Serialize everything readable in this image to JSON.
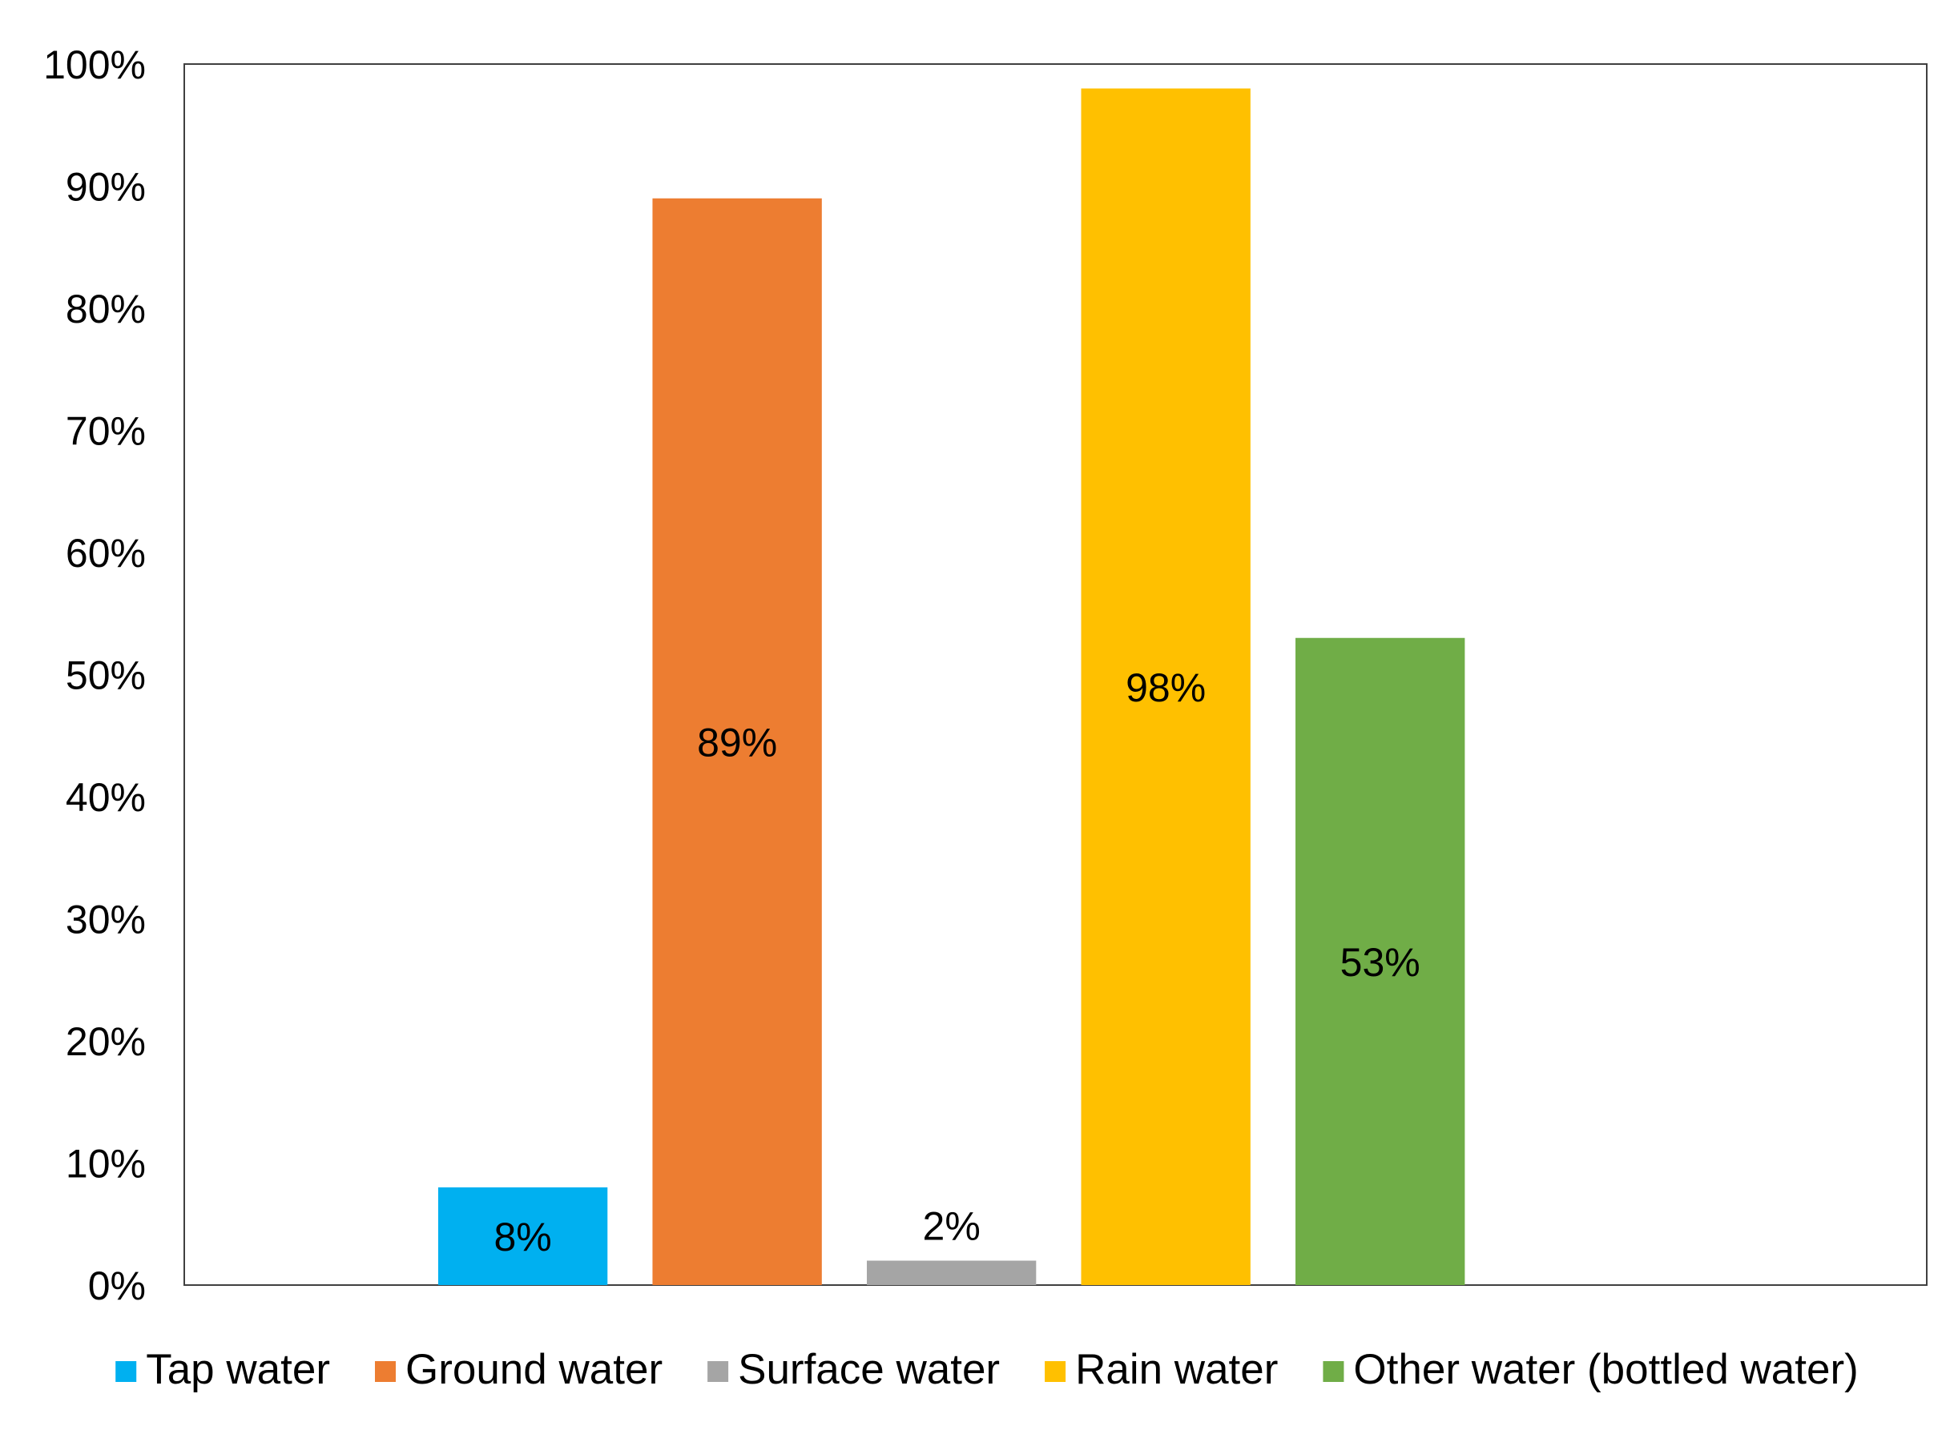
{
  "chart_data": {
    "type": "bar",
    "title": "",
    "xlabel": "",
    "ylabel": "",
    "ylim": [
      0,
      100
    ],
    "yticks": [
      "0%",
      "10%",
      "20%",
      "30%",
      "40%",
      "50%",
      "60%",
      "70%",
      "80%",
      "90%",
      "100%"
    ],
    "grid": false,
    "legend_position": "bottom",
    "series": [
      {
        "name": "Tap water",
        "value": 8,
        "label": "8%",
        "color": "#00B0F0"
      },
      {
        "name": "Ground water",
        "value": 89,
        "label": "89%",
        "color": "#ED7D31"
      },
      {
        "name": "Surface water",
        "value": 2,
        "label": "2%",
        "color": "#A5A5A5"
      },
      {
        "name": "Rain water",
        "value": 98,
        "label": "98%",
        "color": "#FFC000"
      },
      {
        "name": "Other water (bottled water)",
        "value": 53,
        "label": "53%",
        "color": "#70AD47"
      }
    ]
  }
}
